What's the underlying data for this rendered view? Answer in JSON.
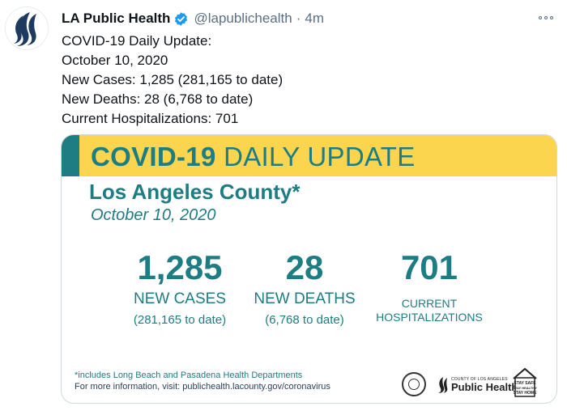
{
  "tweet": {
    "display_name": "LA Public Health",
    "handle": "@lapublichealth",
    "separator": "·",
    "time": "4m",
    "lines": [
      "COVID-19 Daily Update:",
      "October 10, 2020",
      "New Cases: 1,285 (281,165 to date)",
      "New Deaths: 28 (6,768 to date)",
      "Current Hospitalizations: 701"
    ]
  },
  "media": {
    "banner_bold": "COVID-19",
    "banner_light": " DAILY UPDATE",
    "county": "Los Angeles County*",
    "date": "October 10, 2020",
    "stats": {
      "cases": {
        "number": "1,285",
        "label": "NEW CASES",
        "sub": "(281,165 to date)"
      },
      "deaths": {
        "number": "28",
        "label": "NEW DEATHS",
        "sub": "(6,768 to date)"
      },
      "hosp": {
        "number": "701",
        "label_line1": "CURRENT",
        "label_line2": "HOSPITALIZATIONS"
      }
    },
    "footnote": "*includes Long Beach and Pasadena Health Departments",
    "more_info": "For more information, visit: publichealth.lacounty.gov/coronavirus",
    "logo_text_small": "COUNTY OF LOS ANGELES",
    "logo_text_big": "Public Health",
    "stay_safe_lines": [
      "STAY SAFE",
      "STAY HEALTHY",
      "STAY HOME"
    ]
  },
  "colors": {
    "teal": "#1e7c83",
    "yellow": "#fcd54f",
    "muted": "#5b7083",
    "verified": "#1d9bf0"
  },
  "icons": {
    "avatar": "la-public-health-logo",
    "verified": "verified-badge-icon",
    "more": "more-options-icon"
  }
}
